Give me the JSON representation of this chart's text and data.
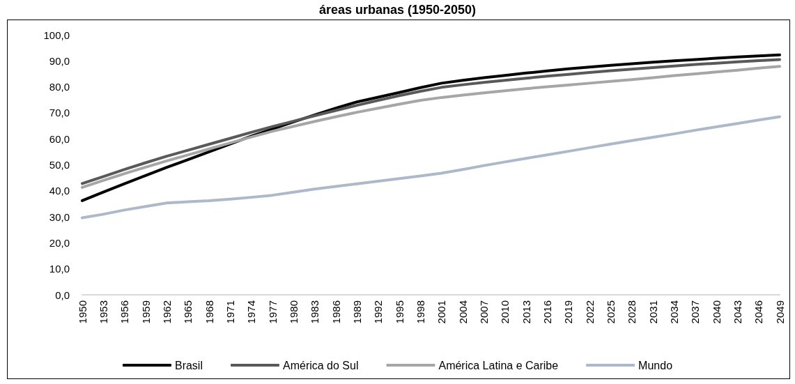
{
  "chart_data": {
    "type": "line",
    "title": "áreas urbanas (1950-2050)",
    "categories": [
      "1950",
      "1953",
      "1956",
      "1959",
      "1962",
      "1965",
      "1968",
      "1971",
      "1974",
      "1977",
      "1980",
      "1983",
      "1986",
      "1989",
      "1992",
      "1995",
      "1998",
      "2001",
      "2004",
      "2007",
      "2010",
      "2013",
      "2016",
      "2019",
      "2022",
      "2025",
      "2028",
      "2031",
      "2034",
      "2037",
      "2040",
      "2043",
      "2046",
      "2049"
    ],
    "series": [
      {
        "name": "Brasil",
        "color": "#000000",
        "values": [
          36.2,
          39.5,
          42.7,
          45.9,
          49.0,
          52.0,
          55.0,
          58.0,
          61.0,
          63.8,
          66.5,
          69.2,
          71.8,
          74.2,
          76.0,
          77.8,
          79.7,
          81.4,
          82.5,
          83.5,
          84.4,
          85.3,
          86.1,
          86.9,
          87.6,
          88.3,
          88.9,
          89.5,
          90.0,
          90.5,
          91.0,
          91.5,
          91.9,
          92.3
        ]
      },
      {
        "name": "América do Sul",
        "color": "#595959",
        "values": [
          42.8,
          45.5,
          48.2,
          50.8,
          53.3,
          55.6,
          57.9,
          60.2,
          62.5,
          64.7,
          66.8,
          68.9,
          70.9,
          72.9,
          74.8,
          76.6,
          78.3,
          79.8,
          80.8,
          81.7,
          82.5,
          83.3,
          84.1,
          84.8,
          85.5,
          86.2,
          86.8,
          87.4,
          88.0,
          88.6,
          89.1,
          89.6,
          90.1,
          90.5
        ]
      },
      {
        "name": "América Latina e Caribe",
        "color": "#a6a6a6",
        "values": [
          41.3,
          44.0,
          46.6,
          49.1,
          51.5,
          53.8,
          56.1,
          58.4,
          60.7,
          62.9,
          64.8,
          66.7,
          68.5,
          70.2,
          71.8,
          73.3,
          74.8,
          75.9,
          76.8,
          77.7,
          78.5,
          79.3,
          80.0,
          80.7,
          81.4,
          82.1,
          82.8,
          83.5,
          84.3,
          85.0,
          85.7,
          86.4,
          87.2,
          87.9
        ]
      },
      {
        "name": "Mundo",
        "color": "#adb9ca",
        "values": [
          29.6,
          31.0,
          32.6,
          34.0,
          35.3,
          35.8,
          36.2,
          36.8,
          37.5,
          38.3,
          39.5,
          40.7,
          41.7,
          42.7,
          43.7,
          44.7,
          45.7,
          46.8,
          48.2,
          49.7,
          51.1,
          52.5,
          53.8,
          55.2,
          56.6,
          58.0,
          59.3,
          60.6,
          61.9,
          63.3,
          64.6,
          65.9,
          67.2,
          68.5
        ]
      }
    ],
    "ylim": [
      0,
      100
    ],
    "yticks": [
      {
        "value": 0,
        "label": "0,0"
      },
      {
        "value": 10,
        "label": "10,0"
      },
      {
        "value": 20,
        "label": "20,0"
      },
      {
        "value": 30,
        "label": "30,0"
      },
      {
        "value": 40,
        "label": "40,0"
      },
      {
        "value": 50,
        "label": "50,0"
      },
      {
        "value": 60,
        "label": "60,0"
      },
      {
        "value": 70,
        "label": "70,0"
      },
      {
        "value": 80,
        "label": "80,0"
      },
      {
        "value": 90,
        "label": "90,0"
      },
      {
        "value": 100,
        "label": "100,0"
      }
    ],
    "grid": false,
    "legend": "bottom",
    "marker": "none",
    "line_style": "solid"
  }
}
